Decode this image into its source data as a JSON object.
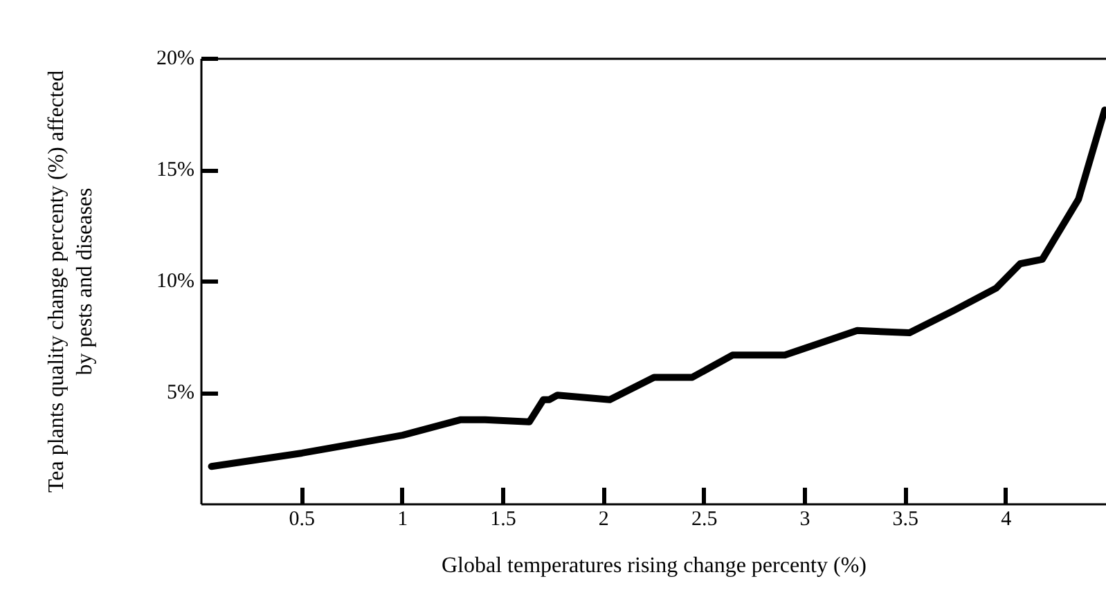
{
  "chart_data": {
    "type": "line",
    "xlabel": "Global temperatures rising change percenty (%)",
    "ylabel": "Tea plants quality change percenty (%) affected\nby pests and diseases",
    "x": [
      0.05,
      0.5,
      1.0,
      1.29,
      1.41,
      1.63,
      1.7,
      1.73,
      1.77,
      2.03,
      2.25,
      2.44,
      2.64,
      2.9,
      3.26,
      3.52,
      3.74,
      3.95,
      4.07,
      4.18,
      4.36,
      4.49
    ],
    "series": [
      {
        "color": "#000000",
        "values": [
          1.7,
          2.3,
          3.1,
          3.8,
          3.8,
          3.7,
          4.7,
          4.7,
          4.9,
          4.7,
          5.7,
          5.7,
          6.7,
          6.7,
          7.8,
          7.7,
          8.7,
          9.7,
          10.8,
          11.0,
          13.7,
          17.7
        ]
      }
    ],
    "xlim": [
      0,
      4.5
    ],
    "ylim": [
      0,
      20
    ],
    "xticks": [
      0.5,
      1,
      1.5,
      2,
      2.5,
      3,
      3.5,
      4
    ],
    "yticks": [
      {
        "value": 5,
        "label": "5%"
      },
      {
        "value": 10,
        "label": "10%"
      },
      {
        "value": 15,
        "label": "15%"
      },
      {
        "value": 20,
        "label": "20%"
      }
    ],
    "marker": "none",
    "line_style": "solid"
  }
}
